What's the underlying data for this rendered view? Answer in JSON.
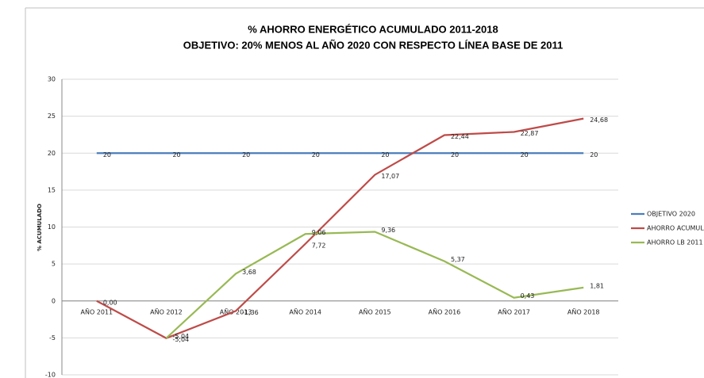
{
  "chart_data": {
    "type": "line",
    "title": "% AHORRO ENERGÉTICO ACUMULADO 2011-2018",
    "subtitle": "OBJETIVO: 20% MENOS AL AÑO 2020 CON RESPECTO LÍNEA BASE DE 2011",
    "y_label": "% ACUMULADO",
    "categories": [
      "AÑO 2011",
      "AÑO 2012",
      "AÑO 2013",
      "AÑO 2014",
      "AÑO 2015",
      "AÑO 2016",
      "AÑO 2017",
      "AÑO 2018"
    ],
    "series": [
      {
        "name": "OBJETIVO 2020",
        "color": "#4a7ebb",
        "values": [
          20,
          20,
          20,
          20,
          20,
          20,
          20,
          20
        ]
      },
      {
        "name": "AHORRO ACUMULADO",
        "color": "#be4b48",
        "values": [
          0.0,
          -5.04,
          -1.36,
          7.72,
          17.07,
          22.44,
          22.87,
          24.68
        ],
        "value_labels": [
          "0,00",
          "-5,04",
          "-1,36",
          "7,72",
          "17,07",
          "22,44",
          "22,87",
          "24,68"
        ]
      },
      {
        "name": "AHORRO LB 2011",
        "color": "#98b954",
        "values": [
          null,
          -5.04,
          3.68,
          9.06,
          9.36,
          5.37,
          0.43,
          1.81
        ],
        "value_labels": [
          null,
          "-5,04",
          "3,68",
          "9,06",
          "9,36",
          "5,37",
          "0,43",
          "1,81"
        ]
      }
    ],
    "ylim": [
      -10,
      30
    ],
    "yticks": [
      -10,
      -5,
      0,
      5,
      10,
      15,
      20,
      25,
      30
    ],
    "grid": true,
    "legend": "right"
  }
}
